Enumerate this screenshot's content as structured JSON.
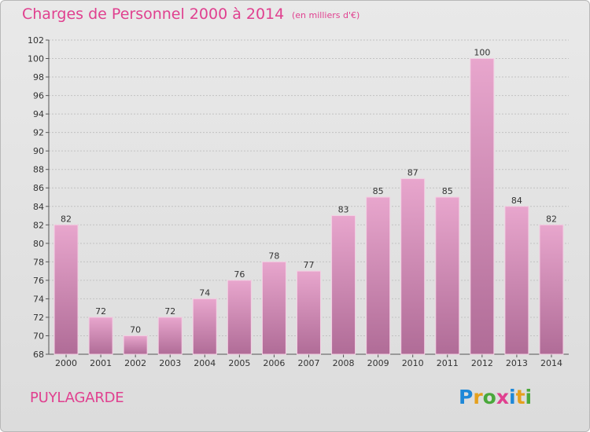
{
  "header": {
    "title": "Charges de Personnel 2000 à 2014",
    "subtitle": "(en milliers d'€)"
  },
  "footer": {
    "commune": "PUYLAGARDE",
    "logo": "Proxiti"
  },
  "colors": {
    "title": "#e0408f",
    "bar_top": "#e8a6cd",
    "bar_bottom": "#b06c97",
    "logo_letters": [
      "#1e88d8",
      "#e5a01d",
      "#4aa83b",
      "#e0408f",
      "#1e88d8",
      "#e5a01d",
      "#4aa83b"
    ]
  },
  "chart_data": {
    "type": "bar",
    "title": "Charges de Personnel 2000 à 2014",
    "xlabel": "",
    "ylabel": "",
    "categories": [
      "2000",
      "2001",
      "2002",
      "2003",
      "2004",
      "2005",
      "2006",
      "2007",
      "2008",
      "2009",
      "2010",
      "2011",
      "2012",
      "2013",
      "2014"
    ],
    "values": [
      82,
      72,
      70,
      72,
      74,
      76,
      78,
      77,
      83,
      85,
      87,
      85,
      100,
      84,
      82
    ],
    "ylim": [
      68,
      102
    ],
    "yticks": [
      68,
      70,
      72,
      74,
      76,
      78,
      80,
      82,
      84,
      86,
      88,
      90,
      92,
      94,
      96,
      98,
      100,
      102
    ],
    "grid": true
  }
}
